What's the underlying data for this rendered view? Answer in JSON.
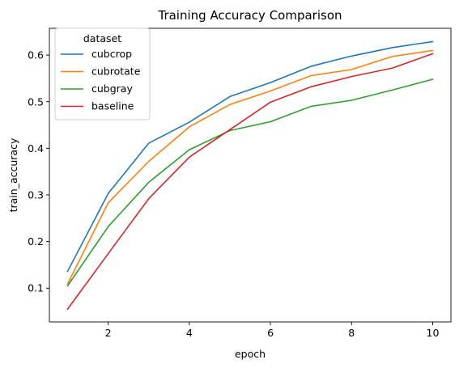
{
  "chart_data": {
    "type": "line",
    "title": "Training Accuracy Comparison",
    "xlabel": "epoch",
    "ylabel": "train_accuracy",
    "x": [
      1,
      2,
      3,
      4,
      5,
      6,
      7,
      8,
      9,
      10
    ],
    "xlim": [
      0.55,
      10.45
    ],
    "ylim": [
      0.0275,
      0.6575
    ],
    "xticks": [
      2,
      4,
      6,
      8,
      10
    ],
    "yticks": [
      0.1,
      0.2,
      0.3,
      0.4,
      0.5,
      0.6
    ],
    "xtick_labels": [
      "2",
      "4",
      "6",
      "8",
      "10"
    ],
    "ytick_labels": [
      "0.1",
      "0.2",
      "0.3",
      "0.4",
      "0.5",
      "0.6"
    ],
    "grid": false,
    "legend": {
      "title": "dataset",
      "placement": "top-left"
    },
    "series": [
      {
        "name": "cubcrop",
        "color": "#1f77b4",
        "values": [
          0.136,
          0.303,
          0.411,
          0.456,
          0.511,
          0.541,
          0.576,
          0.598,
          0.616,
          0.629
        ]
      },
      {
        "name": "cubrotate",
        "color": "#ff7f0e",
        "values": [
          0.109,
          0.283,
          0.372,
          0.446,
          0.494,
          0.523,
          0.556,
          0.569,
          0.597,
          0.61
        ]
      },
      {
        "name": "cubgray",
        "color": "#2ca02c",
        "values": [
          0.105,
          0.232,
          0.327,
          0.397,
          0.438,
          0.457,
          0.49,
          0.503,
          0.525,
          0.548
        ]
      },
      {
        "name": "baseline",
        "color": "#d62728",
        "values": [
          0.055,
          0.174,
          0.292,
          0.381,
          0.44,
          0.499,
          0.532,
          0.554,
          0.572,
          0.603
        ]
      }
    ]
  }
}
